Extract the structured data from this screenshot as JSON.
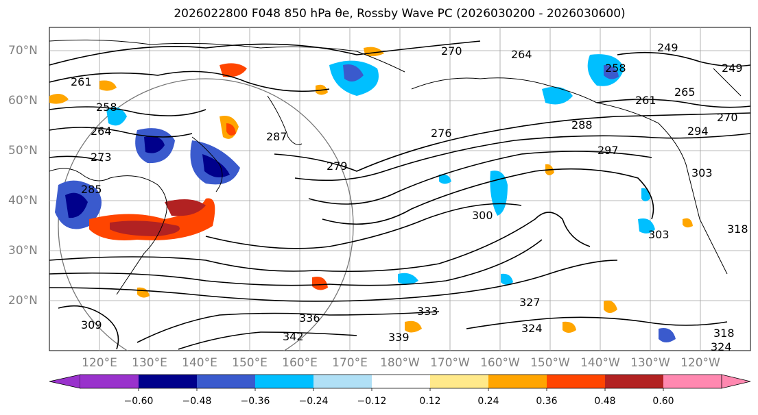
{
  "title": "2026022800 F048 850 hPa θe, Rossby Wave PC (2026030200 - 2026030600)",
  "lat_labels": [
    "70°N",
    "60°N",
    "50°N",
    "40°N",
    "30°N",
    "20°N"
  ],
  "lon_labels": [
    "120°E",
    "130°E",
    "140°E",
    "150°E",
    "160°E",
    "170°E",
    "180°W",
    "170°W",
    "160°W",
    "150°W",
    "140°W",
    "130°W",
    "120°W"
  ],
  "contour_labels": [
    "270",
    "264",
    "249",
    "258",
    "261",
    "261",
    "265",
    "249",
    "258",
    "264",
    "287",
    "276",
    "288",
    "294",
    "270",
    "273",
    "279",
    "297",
    "303",
    "285",
    "300",
    "303",
    "318",
    "336",
    "333",
    "327",
    "324",
    "342",
    "339",
    "324",
    "318",
    "309"
  ],
  "colorbar": {
    "ticks": [
      "−0.60",
      "−0.48",
      "−0.36",
      "−0.24",
      "−0.12",
      "0.12",
      "0.24",
      "0.36",
      "0.48",
      "0.60"
    ],
    "colors": [
      "#9932cc",
      "#00008b",
      "#3a5acd",
      "#00bfff",
      "#b0e0f6",
      "#ffffff",
      "#ffe98a",
      "#ffa500",
      "#ff4500",
      "#b22222",
      "#ff88b0"
    ]
  }
}
